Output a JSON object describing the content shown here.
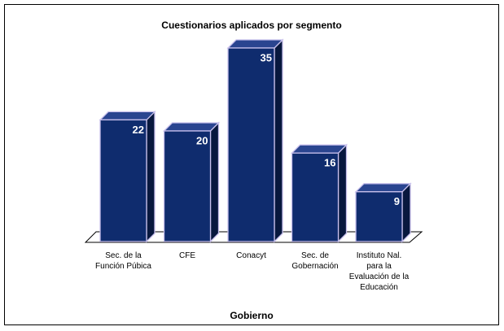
{
  "chart_data": {
    "type": "bar",
    "title": "Cuestionarios aplicados por segmento",
    "x_label": "Gobierno",
    "categories": [
      "Sec. de la Función Púbica",
      "CFE",
      "Conacyt",
      "Sec. de Gobernación",
      "Instituto Nal. para la Evaluación de la Educación"
    ],
    "values": [
      22,
      20,
      35,
      16,
      9
    ],
    "color": "#0f2c6e"
  }
}
